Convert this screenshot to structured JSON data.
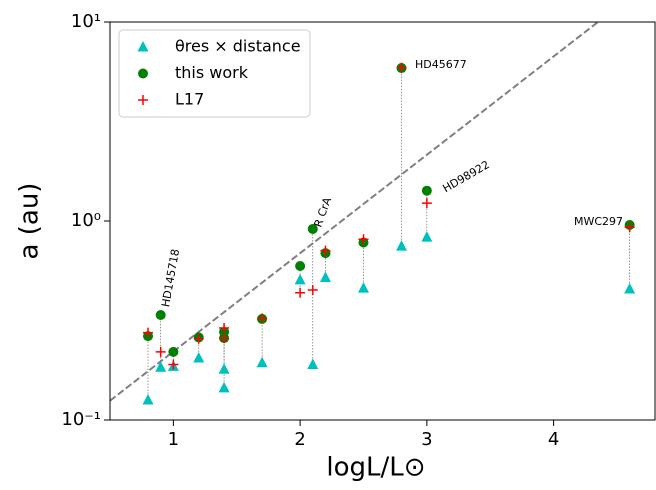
{
  "chart_data": {
    "type": "scatter",
    "xlabel": "logL/L⊙",
    "ylabel": "a (au)",
    "xlim": [
      0.5,
      4.8
    ],
    "ylim": [
      0.1,
      10
    ],
    "yscale": "log",
    "xticks": [
      1,
      2,
      3,
      4
    ],
    "yticks": [
      {
        "value": 0.1,
        "label": "10⁻¹"
      },
      {
        "value": 1,
        "label": "10⁰"
      },
      {
        "value": 10,
        "label": "10¹"
      }
    ],
    "x": [
      0.8,
      0.9,
      1.0,
      1.2,
      1.4,
      1.4,
      1.7,
      2.0,
      2.1,
      2.2,
      2.5,
      2.8,
      3.0,
      4.6
    ],
    "series": [
      {
        "name": "θres × distance",
        "color": "#00bfbf",
        "marker": "triangle",
        "values": [
          0.126,
          0.184,
          0.186,
          0.205,
          0.18,
          0.145,
          0.194,
          0.506,
          0.19,
          0.52,
          0.46,
          0.748,
          0.83,
          0.455
        ]
      },
      {
        "name": "this work",
        "color": "#008000",
        "marker": "circle",
        "values": [
          0.264,
          0.337,
          0.22,
          0.26,
          0.277,
          0.258,
          0.322,
          0.594,
          0.912,
          0.69,
          0.78,
          5.87,
          1.42,
          0.955
        ]
      },
      {
        "name": "L17",
        "color": "#ff0000",
        "marker": "plus",
        "values": [
          0.275,
          0.22,
          0.19,
          0.256,
          0.29,
          0.258,
          0.324,
          0.436,
          0.45,
          0.71,
          0.81,
          5.9,
          1.23,
          0.93
        ]
      }
    ],
    "reference_line": {
      "color": "#808080",
      "x": [
        0.5,
        4.35
      ],
      "y": [
        0.125,
        10
      ]
    },
    "annotations": [
      "HD45677",
      "HD98922",
      "R CrA",
      "HD145718",
      "MWC297"
    ],
    "legend": "upper left"
  }
}
